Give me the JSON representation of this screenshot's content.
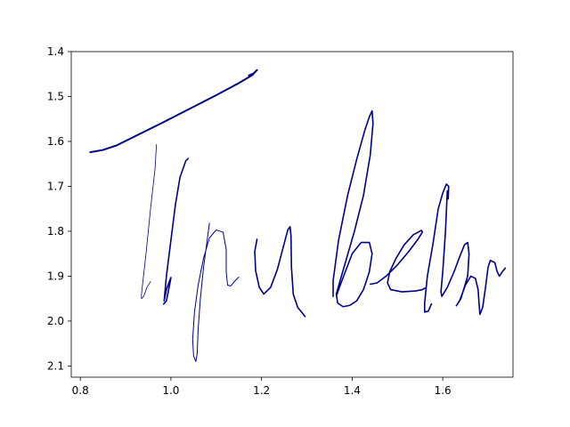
{
  "chart_data": {
    "type": "line",
    "title": "",
    "xlabel": "",
    "ylabel": "",
    "xlim": [
      0.78,
      1.755
    ],
    "ylim": [
      2.125,
      1.4
    ],
    "y_inverted": true,
    "grid": false,
    "legend": "none",
    "line_color": "#00008b",
    "x_ticks": [
      0.8,
      1.0,
      1.2,
      1.4,
      1.6
    ],
    "x_tick_labels": [
      "0.8",
      "1.0",
      "1.2",
      "1.4",
      "1.6"
    ],
    "y_ticks": [
      1.4,
      1.5,
      1.6,
      1.7,
      1.8,
      1.9,
      2.0,
      2.1
    ],
    "y_tick_labels": [
      "1.4",
      "1.5",
      "1.6",
      "1.7",
      "1.8",
      "1.9",
      "2.0",
      "2.1"
    ],
    "series": [
      {
        "width": 2.0,
        "points": [
          [
            0.822,
            1.624
          ],
          [
            0.85,
            1.619
          ],
          [
            0.88,
            1.609
          ],
          [
            0.92,
            1.589
          ],
          [
            0.98,
            1.559
          ],
          [
            1.04,
            1.528
          ],
          [
            1.1,
            1.497
          ],
          [
            1.15,
            1.47
          ],
          [
            1.18,
            1.452
          ],
          [
            1.19,
            1.441
          ],
          [
            1.182,
            1.449
          ],
          [
            1.172,
            1.453
          ]
        ]
      },
      {
        "width": 0.8,
        "points": [
          [
            0.968,
            1.607
          ],
          [
            0.965,
            1.66
          ],
          [
            0.955,
            1.75
          ],
          [
            0.945,
            1.85
          ],
          [
            0.935,
            1.94
          ],
          [
            0.935,
            1.95
          ],
          [
            0.94,
            1.945
          ],
          [
            0.947,
            1.925
          ],
          [
            0.955,
            1.912
          ]
        ]
      },
      {
        "width": 1.6,
        "points": [
          [
            0.984,
            1.962
          ],
          [
            0.99,
            1.955
          ],
          [
            0.997,
            1.92
          ],
          [
            1.0,
            1.903
          ],
          [
            0.99,
            1.93
          ],
          [
            0.985,
            1.955
          ],
          [
            0.99,
            1.9
          ],
          [
            1.0,
            1.82
          ],
          [
            1.01,
            1.74
          ],
          [
            1.02,
            1.68
          ],
          [
            1.033,
            1.643
          ],
          [
            1.038,
            1.638
          ]
        ]
      },
      {
        "width": 1.0,
        "points": [
          [
            1.085,
            1.782
          ],
          [
            1.08,
            1.82
          ],
          [
            1.072,
            1.88
          ],
          [
            1.065,
            1.95
          ],
          [
            1.06,
            2.02
          ],
          [
            1.058,
            2.072
          ],
          [
            1.055,
            2.09
          ],
          [
            1.05,
            2.078
          ],
          [
            1.048,
            2.04
          ],
          [
            1.052,
            1.98
          ],
          [
            1.06,
            1.92
          ],
          [
            1.072,
            1.86
          ],
          [
            1.085,
            1.815
          ],
          [
            1.1,
            1.797
          ],
          [
            1.115,
            1.802
          ],
          [
            1.122,
            1.84
          ],
          [
            1.122,
            1.89
          ],
          [
            1.125,
            1.92
          ],
          [
            1.132,
            1.922
          ],
          [
            1.14,
            1.912
          ],
          [
            1.15,
            1.902
          ]
        ]
      },
      {
        "width": 1.6,
        "points": [
          [
            1.19,
            1.818
          ],
          [
            1.185,
            1.845
          ],
          [
            1.187,
            1.888
          ],
          [
            1.195,
            1.925
          ],
          [
            1.205,
            1.94
          ],
          [
            1.22,
            1.925
          ],
          [
            1.235,
            1.885
          ],
          [
            1.248,
            1.835
          ],
          [
            1.258,
            1.797
          ],
          [
            1.263,
            1.79
          ],
          [
            1.265,
            1.81
          ],
          [
            1.266,
            1.88
          ],
          [
            1.27,
            1.94
          ],
          [
            1.28,
            1.97
          ],
          [
            1.29,
            1.982
          ],
          [
            1.296,
            1.99
          ]
        ]
      },
      {
        "width": 1.6,
        "points": [
          [
            1.358,
            1.945
          ],
          [
            1.358,
            1.91
          ],
          [
            1.37,
            1.82
          ],
          [
            1.39,
            1.72
          ],
          [
            1.41,
            1.64
          ],
          [
            1.428,
            1.575
          ],
          [
            1.438,
            1.545
          ],
          [
            1.444,
            1.532
          ],
          [
            1.446,
            1.56
          ],
          [
            1.44,
            1.63
          ],
          [
            1.425,
            1.72
          ],
          [
            1.405,
            1.8
          ],
          [
            1.385,
            1.87
          ],
          [
            1.372,
            1.915
          ],
          [
            1.365,
            1.94
          ],
          [
            1.368,
            1.96
          ],
          [
            1.38,
            1.968
          ],
          [
            1.395,
            1.965
          ],
          [
            1.41,
            1.955
          ],
          [
            1.425,
            1.93
          ],
          [
            1.438,
            1.89
          ],
          [
            1.444,
            1.85
          ],
          [
            1.438,
            1.825
          ],
          [
            1.42,
            1.825
          ],
          [
            1.4,
            1.85
          ],
          [
            1.385,
            1.89
          ],
          [
            1.37,
            1.93
          ],
          [
            1.366,
            1.942
          ]
        ]
      },
      {
        "width": 1.6,
        "points": [
          [
            1.44,
            1.918
          ],
          [
            1.455,
            1.915
          ],
          [
            1.475,
            1.9
          ],
          [
            1.5,
            1.875
          ],
          [
            1.525,
            1.845
          ],
          [
            1.545,
            1.818
          ],
          [
            1.555,
            1.802
          ],
          [
            1.553,
            1.798
          ],
          [
            1.535,
            1.808
          ],
          [
            1.515,
            1.83
          ],
          [
            1.497,
            1.86
          ],
          [
            1.483,
            1.89
          ],
          [
            1.478,
            1.915
          ],
          [
            1.485,
            1.93
          ],
          [
            1.51,
            1.935
          ],
          [
            1.54,
            1.933
          ],
          [
            1.555,
            1.93
          ],
          [
            1.562,
            1.926
          ]
        ]
      },
      {
        "width": 1.6,
        "points": [
          [
            1.575,
            1.962
          ],
          [
            1.568,
            1.978
          ],
          [
            1.56,
            1.98
          ],
          [
            1.56,
            1.96
          ],
          [
            1.566,
            1.9
          ],
          [
            1.578,
            1.83
          ],
          [
            1.59,
            1.75
          ],
          [
            1.6,
            1.715
          ],
          [
            1.608,
            1.695
          ],
          [
            1.613,
            1.7
          ],
          [
            1.612,
            1.728
          ],
          [
            1.61,
            1.71
          ],
          [
            1.606,
            1.8
          ],
          [
            1.6,
            1.89
          ],
          [
            1.596,
            1.935
          ],
          [
            1.598,
            1.945
          ],
          [
            1.61,
            1.925
          ],
          [
            1.625,
            1.89
          ],
          [
            1.638,
            1.855
          ],
          [
            1.648,
            1.83
          ],
          [
            1.655,
            1.825
          ],
          [
            1.658,
            1.85
          ],
          [
            1.655,
            1.9
          ],
          [
            1.64,
            1.95
          ],
          [
            1.63,
            1.966
          ],
          [
            1.637,
            1.955
          ],
          [
            1.65,
            1.92
          ],
          [
            1.662,
            1.9
          ],
          [
            1.672,
            1.905
          ],
          [
            1.678,
            1.93
          ],
          [
            1.68,
            1.96
          ],
          [
            1.682,
            1.985
          ],
          [
            1.688,
            1.97
          ],
          [
            1.695,
            1.92
          ],
          [
            1.7,
            1.88
          ],
          [
            1.705,
            1.865
          ],
          [
            1.715,
            1.87
          ],
          [
            1.72,
            1.89
          ],
          [
            1.725,
            1.9
          ],
          [
            1.733,
            1.888
          ],
          [
            1.738,
            1.882
          ]
        ]
      }
    ]
  }
}
